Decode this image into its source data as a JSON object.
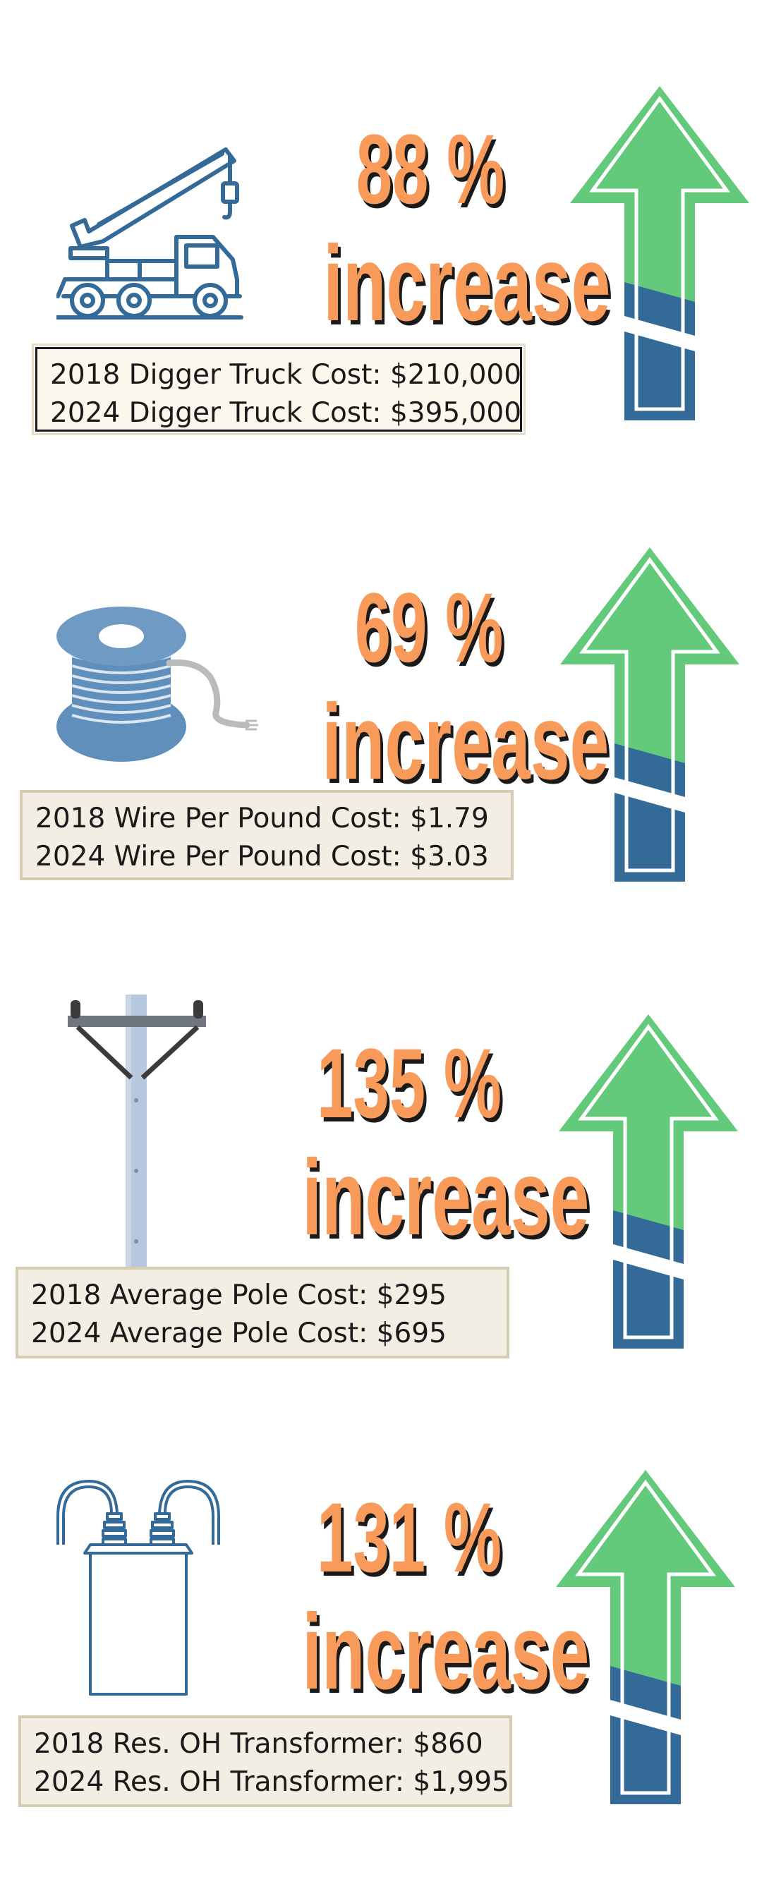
{
  "colors": {
    "percent_orange": "#f79a5a",
    "arrow_green": "#63c97b",
    "arrow_blue": "#336a98",
    "icon_blue": "#336a98",
    "box_bg": "#f3eee3"
  },
  "items": [
    {
      "icon": "digger-truck-icon",
      "percent": "88 %",
      "word": "increase",
      "line1": "2018 Digger Truck Cost:  $210,000",
      "line2": "2024 Digger Truck Cost:  $395,000"
    },
    {
      "icon": "wire-spool-icon",
      "percent": "69 %",
      "word": "increase",
      "line1": "2018 Wire Per Pound Cost:  $1.79",
      "line2": "2024 Wire Per Pound Cost:  $3.03"
    },
    {
      "icon": "utility-pole-icon",
      "percent": "135 %",
      "word": "increase",
      "line1": "2018 Average Pole Cost:  $295",
      "line2": "2024 Average Pole Cost:  $695"
    },
    {
      "icon": "transformer-icon",
      "percent": "131 %",
      "word": "increase",
      "line1": "2018 Res. OH Transformer:  $860",
      "line2": "2024 Res. OH Transformer:  $1,995"
    }
  ]
}
